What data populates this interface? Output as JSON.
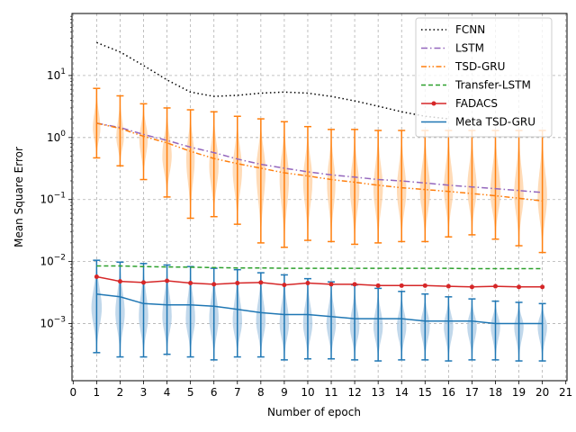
{
  "chart_data": {
    "type": "line",
    "xlabel": "Number of epoch",
    "ylabel": "Mean Square Error",
    "xlim": [
      -0.05,
      21.05
    ],
    "ylim": [
      0.00012,
      100
    ],
    "yscale": "log",
    "grid": true,
    "legend_position": "top-right",
    "x_ticks": [
      0,
      1,
      2,
      3,
      4,
      5,
      6,
      7,
      8,
      9,
      10,
      11,
      12,
      13,
      14,
      15,
      16,
      17,
      18,
      19,
      20,
      21
    ],
    "x_tick_labels": [
      "0",
      "1",
      "2",
      "3",
      "4",
      "5",
      "6",
      "7",
      "8",
      "9",
      "10",
      "11",
      "12",
      "13",
      "14",
      "15",
      "16",
      "17",
      "18",
      "19",
      "20",
      "21"
    ],
    "y_ticks": [
      0.001,
      0.01,
      0.1,
      1,
      10
    ],
    "y_tick_labels": [
      "10^-3",
      "10^-2",
      "10^-1",
      "10^0",
      "10^1"
    ],
    "x": [
      1,
      2,
      3,
      4,
      5,
      6,
      7,
      8,
      9,
      10,
      11,
      12,
      13,
      14,
      15,
      16,
      17,
      18,
      19,
      20
    ],
    "series": [
      {
        "name": "FCNN",
        "color": "#000000",
        "style": "dotted",
        "marker": "none",
        "x": [
          1,
          2,
          3,
          4,
          5,
          6,
          7,
          8,
          9,
          10,
          11,
          12,
          13,
          14,
          15,
          16
        ],
        "values": [
          34,
          24,
          14.5,
          8.5,
          5.4,
          4.6,
          4.8,
          5.2,
          5.4,
          5.2,
          4.6,
          3.9,
          3.2,
          2.6,
          2.2,
          2.0
        ]
      },
      {
        "name": "LSTM",
        "color": "#9467bd",
        "style": "dashdot",
        "marker": "none",
        "values": [
          1.7,
          1.45,
          1.12,
          0.9,
          0.7,
          0.57,
          0.45,
          0.37,
          0.32,
          0.28,
          0.25,
          0.23,
          0.21,
          0.2,
          0.185,
          0.17,
          0.16,
          0.15,
          0.14,
          0.13
        ]
      },
      {
        "name": "TSD-GRU",
        "color": "#ff7f0e",
        "style": "dashdotdot",
        "marker": "none",
        "values": [
          1.7,
          1.4,
          1.05,
          0.82,
          0.6,
          0.46,
          0.38,
          0.32,
          0.27,
          0.24,
          0.21,
          0.19,
          0.17,
          0.155,
          0.145,
          0.135,
          0.125,
          0.115,
          0.105,
          0.095
        ]
      },
      {
        "name": "Transfer-LSTM",
        "color": "#2ca02c",
        "style": "dashed",
        "marker": "none",
        "values": [
          0.0085,
          0.0085,
          0.0083,
          0.0082,
          0.0081,
          0.008,
          0.0079,
          0.0079,
          0.0078,
          0.0078,
          0.0078,
          0.0078,
          0.0078,
          0.0078,
          0.0078,
          0.0078,
          0.0077,
          0.0077,
          0.0077,
          0.0077
        ]
      },
      {
        "name": "FADACS",
        "color": "#d62728",
        "style": "solid",
        "marker": "circle",
        "values": [
          0.0057,
          0.0048,
          0.0046,
          0.0049,
          0.0045,
          0.0043,
          0.0045,
          0.0046,
          0.0042,
          0.0045,
          0.0043,
          0.0043,
          0.0041,
          0.0041,
          0.0041,
          0.004,
          0.0039,
          0.004,
          0.0039,
          0.0039
        ]
      },
      {
        "name": "Meta TSD-GRU",
        "color": "#1f77b4",
        "style": "solid",
        "marker": "none",
        "values": [
          0.003,
          0.0027,
          0.0021,
          0.002,
          0.002,
          0.0019,
          0.0017,
          0.0015,
          0.0014,
          0.0014,
          0.0013,
          0.0012,
          0.0012,
          0.0012,
          0.0011,
          0.0011,
          0.0011,
          0.001,
          0.001,
          0.001
        ]
      }
    ],
    "violins": [
      {
        "name": "TSD-GRU",
        "color": "#ff7f0e",
        "fill": "#ffcc99",
        "min": [
          0.47,
          0.35,
          0.21,
          0.11,
          0.05,
          0.053,
          0.04,
          0.02,
          0.017,
          0.022,
          0.021,
          0.019,
          0.02,
          0.021,
          0.021,
          0.025,
          0.027,
          0.023,
          0.018,
          0.014
        ],
        "max": [
          6.2,
          4.7,
          3.5,
          3.0,
          2.8,
          2.6,
          2.2,
          2.0,
          1.8,
          1.5,
          1.35,
          1.35,
          1.3,
          1.3,
          1.3,
          1.3,
          1.3,
          1.3,
          1.3,
          1.3
        ],
        "center": [
          1.4,
          1.0,
          0.95,
          0.5,
          0.45,
          0.35,
          0.3,
          0.3,
          0.22,
          0.2,
          0.18,
          0.15,
          0.15,
          0.14,
          0.14,
          0.15,
          0.15,
          0.13,
          0.12,
          0.11
        ],
        "half_width": [
          0.16,
          0.16,
          0.18,
          0.2,
          0.18,
          0.2,
          0.2,
          0.2,
          0.2,
          0.2,
          0.18,
          0.2,
          0.2,
          0.2,
          0.22,
          0.2,
          0.2,
          0.22,
          0.2,
          0.2
        ]
      },
      {
        "name": "Meta TSD-GRU",
        "color": "#1f77b4",
        "fill": "#a6c8e3",
        "min": [
          0.00034,
          0.00029,
          0.00029,
          0.00032,
          0.00029,
          0.00026,
          0.00029,
          0.00029,
          0.00026,
          0.00027,
          0.00027,
          0.00026,
          0.00025,
          0.00026,
          0.00026,
          0.00025,
          0.00026,
          0.00026,
          0.00025,
          0.00025
        ],
        "max": [
          0.0105,
          0.0098,
          0.0093,
          0.0088,
          0.0083,
          0.0078,
          0.0074,
          0.0066,
          0.0061,
          0.0053,
          0.0047,
          0.0042,
          0.0037,
          0.0033,
          0.003,
          0.0027,
          0.0025,
          0.0023,
          0.0022,
          0.0021
        ],
        "center": [
          0.0018,
          0.0015,
          0.0013,
          0.0013,
          0.0012,
          0.0012,
          0.0011,
          0.0011,
          0.001,
          0.001,
          0.001,
          0.0009,
          0.0009,
          0.0009,
          0.0009,
          0.0009,
          0.0009,
          0.0009,
          0.0009,
          0.0009
        ],
        "half_width": [
          0.22,
          0.2,
          0.2,
          0.2,
          0.2,
          0.2,
          0.2,
          0.2,
          0.2,
          0.2,
          0.2,
          0.2,
          0.2,
          0.2,
          0.2,
          0.2,
          0.2,
          0.2,
          0.2,
          0.2
        ]
      }
    ]
  }
}
